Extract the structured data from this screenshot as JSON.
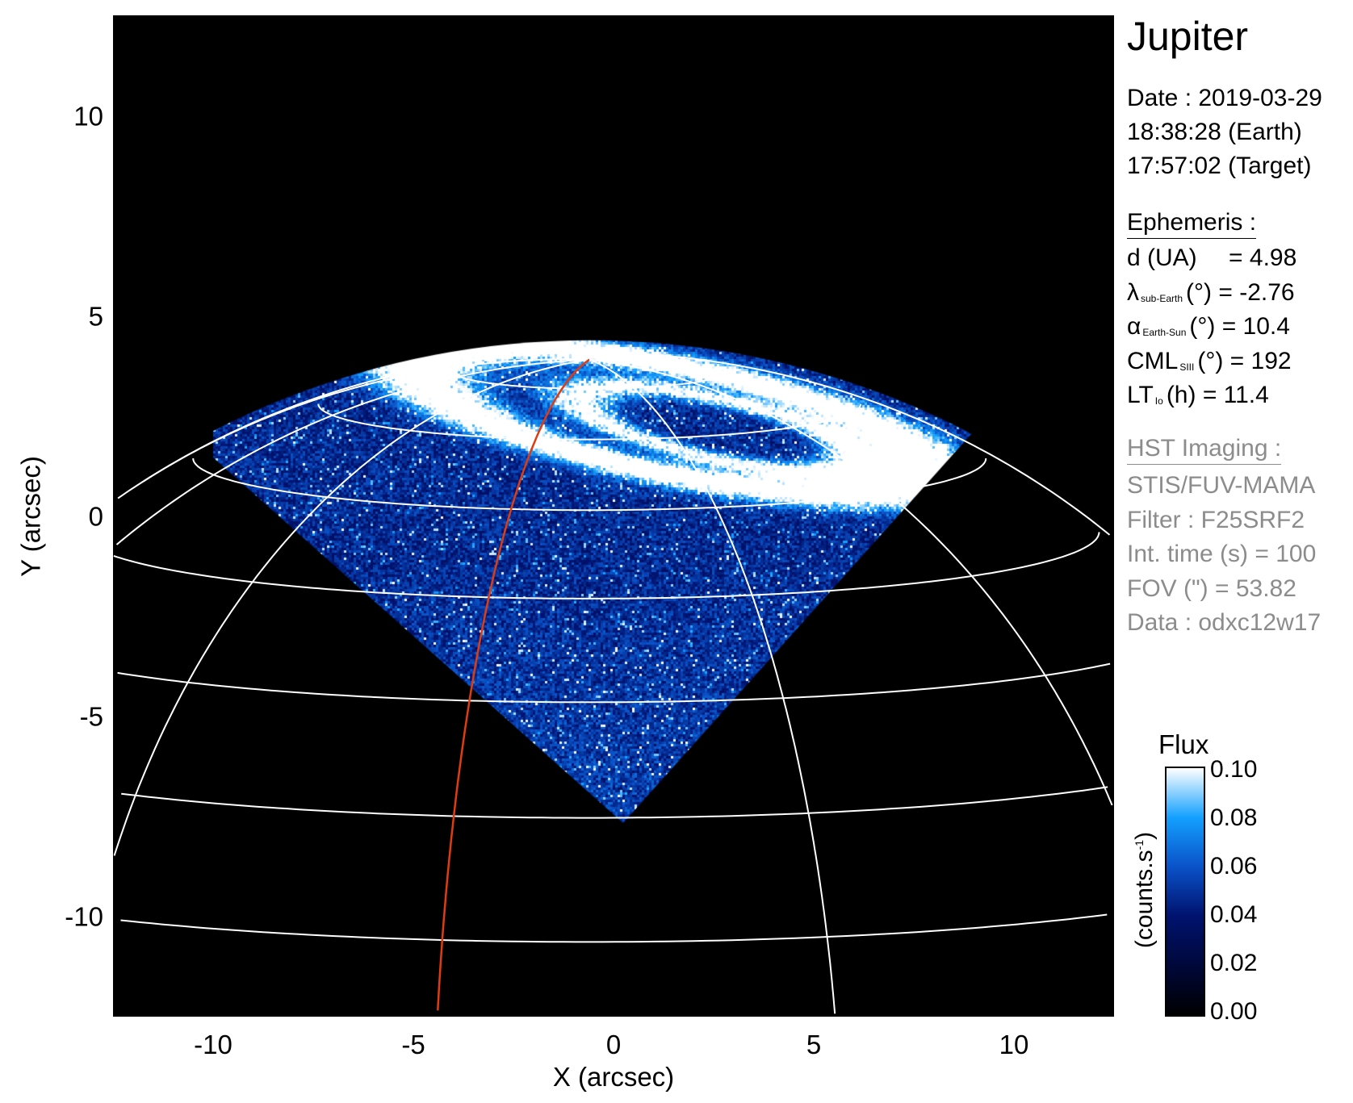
{
  "chart_data": {
    "type": "heatmap",
    "description_printed": "",
    "xlabel": "X (arcsec)",
    "ylabel": "Y (arcsec)",
    "xlim": [
      -12.5,
      12.5
    ],
    "ylim": [
      -12.5,
      12.5
    ],
    "xticks": [
      "-10",
      "-5",
      "0",
      "5",
      "10"
    ],
    "xtick_values": [
      -10,
      -5,
      0,
      5,
      10
    ],
    "yticks": [
      "10",
      "5",
      "0",
      "-5",
      "-10"
    ],
    "ytick_values": [
      10,
      5,
      0,
      -5,
      -10
    ],
    "background": "#000000",
    "grid_color": "#ffffff",
    "highlight_meridian_color": "#e03c10",
    "colorbar": {
      "title": "Flux",
      "label": "(counts.s",
      "label_sup": "-1",
      "label_end": ")",
      "range": [
        0.0,
        0.1
      ],
      "ticks": [
        "0.10",
        "0.08",
        "0.06",
        "0.04",
        "0.02",
        "0.00"
      ],
      "tick_values": [
        0.1,
        0.08,
        0.06,
        0.04,
        0.02,
        0.0
      ],
      "colormap": [
        "#000000",
        "#00083a",
        "#00126e",
        "#0a52c8",
        "#13a0ff",
        "#ffffff"
      ]
    }
  },
  "info": {
    "target": "Jupiter",
    "date": "Date : 2019-03-29",
    "time_earth": "18:38:28 (Earth)",
    "time_target": "17:57:02 (Target)",
    "ephemeris_title": "Ephemeris :",
    "ephemeris": [
      {
        "sym": "d (UA)",
        "sub": "",
        "rest": "    = 4.98"
      },
      {
        "sym": "λ",
        "sub": "sub-Earth",
        "rest": "(°) = -2.76"
      },
      {
        "sym": "α",
        "sub": "Earth-Sun",
        "rest": "(°) = 10.4"
      },
      {
        "sym": "CML",
        "sub": "SIII",
        "rest": "(°) = 192"
      },
      {
        "sym": "LT",
        "sub": "Io",
        "rest": "(h) = 11.4"
      }
    ],
    "imaging_title": "HST Imaging :",
    "imaging": [
      "STIS/FUV-MAMA",
      "Filter : F25SRF2",
      "Int. time (s) = 100",
      "FOV (\") = 53.82",
      "Data : odxc12w17"
    ]
  }
}
